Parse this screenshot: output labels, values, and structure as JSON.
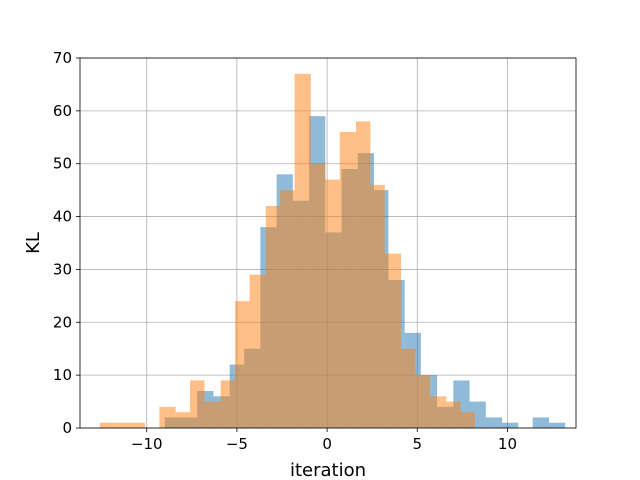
{
  "chart_data": {
    "type": "bar",
    "subtype": "overlapping-histogram",
    "title": "",
    "xlabel": "iteration",
    "ylabel": "KL",
    "xlim": [
      -13.7,
      13.8
    ],
    "ylim": [
      0,
      70
    ],
    "xticks": [
      -10,
      -5,
      0,
      5,
      10
    ],
    "yticks": [
      0,
      10,
      20,
      30,
      40,
      50,
      60,
      70
    ],
    "grid": true,
    "legend": "none",
    "series": [
      {
        "color": "#1f77b4",
        "opacity": 0.5,
        "bins": [
          {
            "x0": -9.0,
            "x1": -8.1,
            "count": 2
          },
          {
            "x0": -8.1,
            "x1": -7.2,
            "count": 2
          },
          {
            "x0": -7.2,
            "x1": -6.3,
            "count": 7
          },
          {
            "x0": -6.3,
            "x1": -5.4,
            "count": 6
          },
          {
            "x0": -5.4,
            "x1": -4.6,
            "count": 12
          },
          {
            "x0": -4.6,
            "x1": -3.7,
            "count": 15
          },
          {
            "x0": -3.7,
            "x1": -2.8,
            "count": 38
          },
          {
            "x0": -2.8,
            "x1": -1.9,
            "count": 48
          },
          {
            "x0": -1.9,
            "x1": -1.0,
            "count": 43
          },
          {
            "x0": -1.0,
            "x1": -0.1,
            "count": 59
          },
          {
            "x0": -0.1,
            "x1": 0.8,
            "count": 37
          },
          {
            "x0": 0.8,
            "x1": 1.7,
            "count": 49
          },
          {
            "x0": 1.7,
            "x1": 2.6,
            "count": 52
          },
          {
            "x0": 2.6,
            "x1": 3.4,
            "count": 45
          },
          {
            "x0": 3.4,
            "x1": 4.3,
            "count": 28
          },
          {
            "x0": 4.3,
            "x1": 5.2,
            "count": 18
          },
          {
            "x0": 5.2,
            "x1": 6.1,
            "count": 10
          },
          {
            "x0": 6.1,
            "x1": 7.0,
            "count": 4
          },
          {
            "x0": 7.0,
            "x1": 7.9,
            "count": 9
          },
          {
            "x0": 7.9,
            "x1": 8.8,
            "count": 5
          },
          {
            "x0": 8.8,
            "x1": 9.7,
            "count": 2
          },
          {
            "x0": 9.7,
            "x1": 10.6,
            "count": 1
          },
          {
            "x0": 10.6,
            "x1": 11.4,
            "count": 0
          },
          {
            "x0": 11.4,
            "x1": 12.3,
            "count": 2
          },
          {
            "x0": 12.3,
            "x1": 13.2,
            "count": 1
          }
        ]
      },
      {
        "color": "#ff7f0e",
        "opacity": 0.5,
        "bins": [
          {
            "x0": -12.6,
            "x1": -11.8,
            "count": 1
          },
          {
            "x0": -11.8,
            "x1": -10.9,
            "count": 1
          },
          {
            "x0": -10.9,
            "x1": -10.1,
            "count": 1
          },
          {
            "x0": -10.1,
            "x1": -9.3,
            "count": 0
          },
          {
            "x0": -9.3,
            "x1": -8.4,
            "count": 4
          },
          {
            "x0": -8.4,
            "x1": -7.6,
            "count": 3
          },
          {
            "x0": -7.6,
            "x1": -6.8,
            "count": 9
          },
          {
            "x0": -6.8,
            "x1": -5.9,
            "count": 5
          },
          {
            "x0": -5.9,
            "x1": -5.1,
            "count": 9
          },
          {
            "x0": -5.1,
            "x1": -4.3,
            "count": 24
          },
          {
            "x0": -4.3,
            "x1": -3.4,
            "count": 29
          },
          {
            "x0": -3.4,
            "x1": -2.6,
            "count": 42
          },
          {
            "x0": -2.6,
            "x1": -1.8,
            "count": 45
          },
          {
            "x0": -1.8,
            "x1": -0.9,
            "count": 67
          },
          {
            "x0": -0.9,
            "x1": -0.1,
            "count": 50
          },
          {
            "x0": -0.1,
            "x1": 0.7,
            "count": 47
          },
          {
            "x0": 0.7,
            "x1": 1.6,
            "count": 56
          },
          {
            "x0": 1.6,
            "x1": 2.4,
            "count": 58
          },
          {
            "x0": 2.4,
            "x1": 3.2,
            "count": 46
          },
          {
            "x0": 3.2,
            "x1": 4.1,
            "count": 33
          },
          {
            "x0": 4.1,
            "x1": 4.9,
            "count": 15
          },
          {
            "x0": 4.9,
            "x1": 5.7,
            "count": 10
          },
          {
            "x0": 5.7,
            "x1": 6.6,
            "count": 6
          },
          {
            "x0": 6.6,
            "x1": 7.4,
            "count": 5
          },
          {
            "x0": 7.4,
            "x1": 8.2,
            "count": 3
          }
        ]
      }
    ]
  }
}
